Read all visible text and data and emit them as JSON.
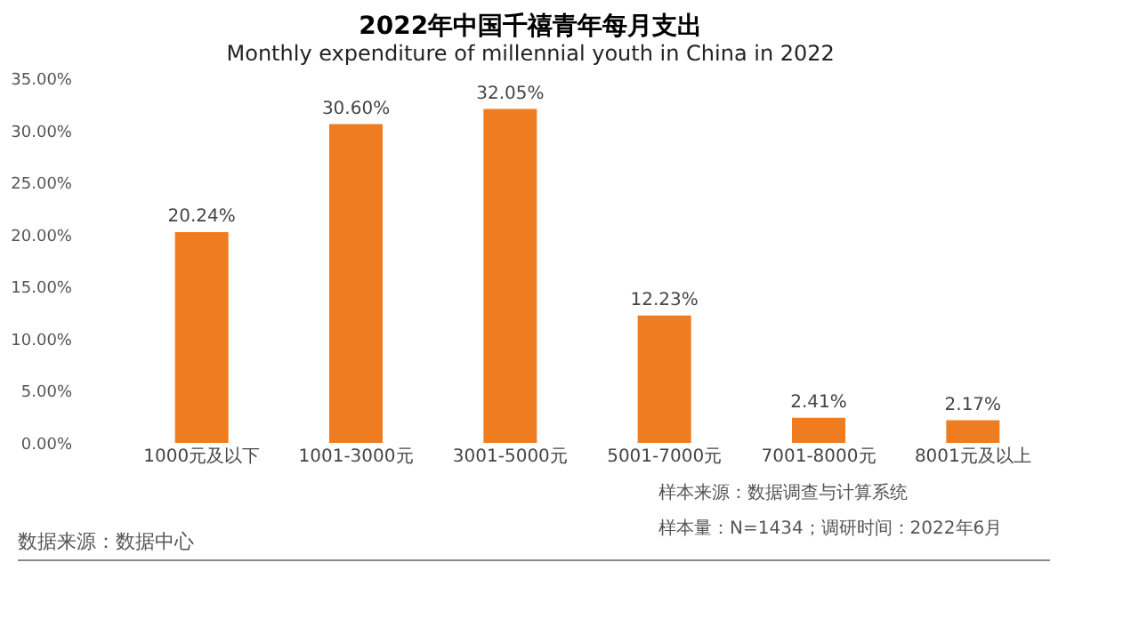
{
  "chart_data": {
    "type": "bar",
    "title": "2022年中国千禧青年每月支出",
    "subtitle": "Monthly expenditure of millennial youth in China in 2022",
    "categories": [
      "1000元及以下",
      "1001-3000元",
      "3001-5000元",
      "5001-7000元",
      "7001-8000元",
      "8001元及以上"
    ],
    "values": [
      20.24,
      30.6,
      32.05,
      12.23,
      2.41,
      2.17
    ],
    "value_labels": [
      "20.24%",
      "30.60%",
      "32.05%",
      "12.23%",
      "2.41%",
      "2.17%"
    ],
    "color": "#f07c22",
    "ylim": [
      0,
      35
    ],
    "yticks": [
      {
        "value": 0,
        "label": "0.00%"
      },
      {
        "value": 5,
        "label": "5.00%"
      },
      {
        "value": 10,
        "label": "10.00%"
      },
      {
        "value": 15,
        "label": "15.00%"
      },
      {
        "value": 20,
        "label": "20.00%"
      },
      {
        "value": 25,
        "label": "25.00%"
      },
      {
        "value": 30,
        "label": "30.00%"
      },
      {
        "value": 35,
        "label": "35.00%"
      }
    ],
    "grid": false,
    "annotations": [
      "样本来源：数据调查与计算系统",
      "样本量：N=1434；调研时间：2022年6月",
      "数据来源：数据中心"
    ]
  }
}
